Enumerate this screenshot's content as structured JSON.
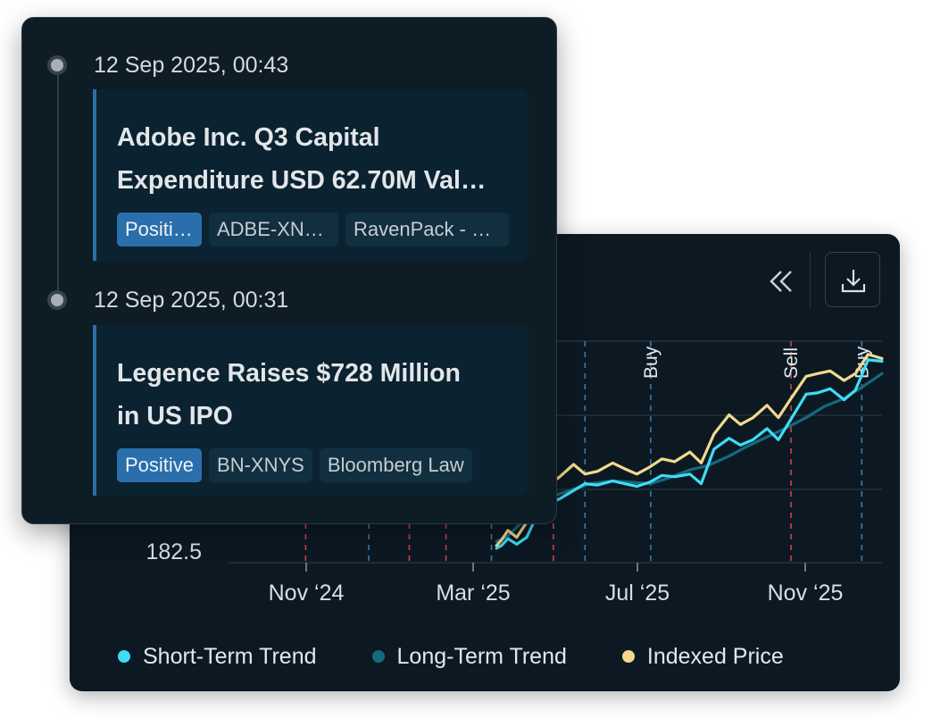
{
  "toolbar": {
    "collapse_icon": "double-chevron-left-icon",
    "download_icon": "download-icon"
  },
  "chart_data": {
    "type": "line",
    "ytick_labels": [
      "182.5"
    ],
    "xtick_labels": [
      "Nov ‘24",
      "Mar ‘25",
      "Jul ‘25",
      "Nov ‘25"
    ],
    "xlim": [
      "2024-08-01",
      "2025-12-31"
    ],
    "grid": true,
    "legend_position": "bottom",
    "signals": [
      {
        "label": "",
        "date": "2024-10-01",
        "kind": "sell"
      },
      {
        "label": "",
        "date": "2024-11-20",
        "kind": "buy"
      },
      {
        "label": "",
        "date": "2024-12-22",
        "kind": "sell"
      },
      {
        "label": "",
        "date": "2025-01-20",
        "kind": "sell"
      },
      {
        "label": "",
        "date": "2025-02-25",
        "kind": "buy"
      },
      {
        "label": "",
        "date": "2025-04-15",
        "kind": "sell"
      },
      {
        "label": "",
        "date": "2025-05-10",
        "kind": "buy"
      },
      {
        "label": "Buy",
        "date": "2025-07-01",
        "kind": "buy"
      },
      {
        "label": "Sell",
        "date": "2025-10-20",
        "kind": "sell"
      },
      {
        "label": "Buy",
        "date": "2025-12-15",
        "kind": "buy"
      }
    ],
    "series": [
      {
        "name": "Short-Term Trend",
        "color": "#3fdcf5",
        "x": [
          "2025-03-01",
          "2025-03-05",
          "2025-03-10",
          "2025-03-17",
          "2025-03-25",
          "2025-04-01",
          "2025-04-10",
          "2025-04-20",
          "2025-05-01",
          "2025-05-10",
          "2025-05-20",
          "2025-06-01",
          "2025-06-10",
          "2025-06-20",
          "2025-06-30",
          "2025-07-10",
          "2025-07-20",
          "2025-08-01",
          "2025-08-10",
          "2025-08-20",
          "2025-09-01",
          "2025-09-10",
          "2025-09-20",
          "2025-10-01",
          "2025-10-10",
          "2025-10-20",
          "2025-11-01",
          "2025-11-10",
          "2025-11-20",
          "2025-12-01",
          "2025-12-10",
          "2025-12-20",
          "2025-12-31"
        ],
        "y": [
          182.7,
          182.9,
          183.4,
          183.0,
          183.5,
          184.9,
          185.9,
          186.3,
          186.9,
          187.4,
          187.3,
          187.6,
          187.4,
          187.2,
          187.5,
          188.0,
          187.9,
          188.1,
          187.4,
          189.9,
          190.7,
          190.2,
          190.6,
          191.4,
          190.6,
          192.1,
          193.9,
          194.0,
          194.3,
          193.5,
          194.2,
          196.4,
          196.3
        ]
      },
      {
        "name": "Long-Term Trend",
        "color": "#17697e",
        "x": [
          "2025-03-01",
          "2025-03-10",
          "2025-03-20",
          "2025-04-01",
          "2025-04-15",
          "2025-05-01",
          "2025-05-15",
          "2025-06-01",
          "2025-06-15",
          "2025-07-01",
          "2025-07-15",
          "2025-08-01",
          "2025-08-15",
          "2025-09-01",
          "2025-09-15",
          "2025-10-01",
          "2025-10-15",
          "2025-11-01",
          "2025-11-15",
          "2025-12-01",
          "2025-12-15",
          "2025-12-31"
        ],
        "y": [
          183.2,
          183.6,
          184.5,
          185.6,
          186.5,
          187.0,
          187.4,
          187.6,
          187.5,
          187.4,
          187.8,
          188.4,
          188.7,
          189.4,
          190.1,
          190.8,
          191.4,
          192.2,
          193.0,
          193.6,
          194.4,
          195.4
        ]
      },
      {
        "name": "Indexed Price",
        "color": "#f2d98c",
        "x": [
          "2025-03-01",
          "2025-03-05",
          "2025-03-10",
          "2025-03-17",
          "2025-03-25",
          "2025-04-01",
          "2025-04-10",
          "2025-04-20",
          "2025-05-01",
          "2025-05-10",
          "2025-05-20",
          "2025-06-01",
          "2025-06-10",
          "2025-06-20",
          "2025-06-30",
          "2025-07-10",
          "2025-07-20",
          "2025-08-01",
          "2025-08-10",
          "2025-08-20",
          "2025-09-01",
          "2025-09-10",
          "2025-09-20",
          "2025-10-01",
          "2025-10-10",
          "2025-10-20",
          "2025-11-01",
          "2025-11-10",
          "2025-11-20",
          "2025-12-01",
          "2025-12-10",
          "2025-12-20",
          "2025-12-31"
        ],
        "y": [
          182.9,
          183.3,
          184.0,
          183.5,
          184.6,
          186.4,
          187.2,
          187.9,
          188.8,
          188.1,
          188.3,
          188.9,
          188.5,
          188.1,
          188.6,
          189.2,
          189.0,
          189.7,
          188.9,
          191.0,
          192.4,
          191.7,
          192.2,
          193.1,
          192.2,
          193.6,
          195.2,
          195.4,
          195.6,
          194.9,
          195.4,
          196.8,
          196.5
        ]
      }
    ]
  },
  "news": {
    "items": [
      {
        "date": "12 Sep 2025, 00:43",
        "title_line1": "Adobe Inc. Q3 Capital",
        "title_line2": "Expenditure USD 62.70M Val…",
        "tags": [
          "Positive",
          "ADBE-XNAS",
          "RavenPack - F…"
        ]
      },
      {
        "date": "12 Sep 2025, 00:31",
        "title_line1": "Legence Raises $728 Million",
        "title_line2": "in US IPO",
        "tags": [
          "Positive",
          "BN-XNYS",
          "Bloomberg Law"
        ]
      }
    ]
  }
}
